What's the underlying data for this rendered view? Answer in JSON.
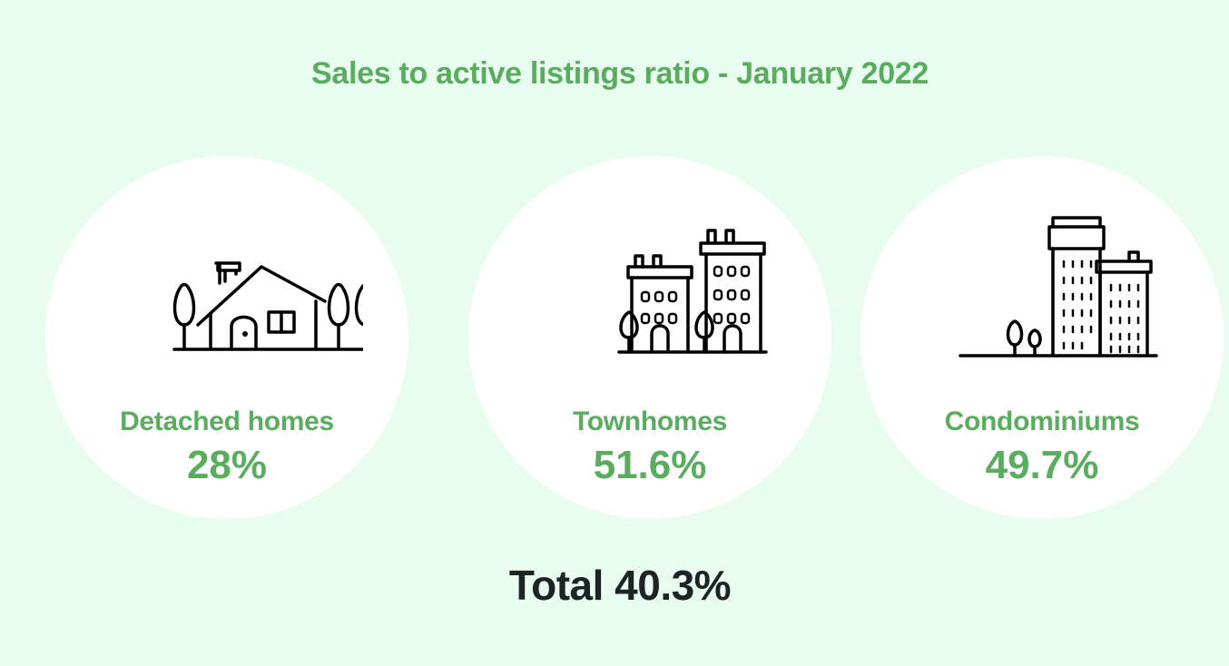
{
  "title": "Sales to active listings ratio - January 2022",
  "categories": [
    {
      "label": "Detached homes",
      "value": "28%",
      "icon": "detached-house-icon"
    },
    {
      "label": "Townhomes",
      "value": "51.6%",
      "icon": "townhomes-icon"
    },
    {
      "label": "Condominiums",
      "value": "49.7%",
      "icon": "condominium-buildings-icon"
    }
  ],
  "total": "Total 40.3%",
  "colors": {
    "background": "#e9fcf0",
    "card": "#ffffff",
    "accent": "#5aad5f",
    "total_text": "#1e2326"
  }
}
